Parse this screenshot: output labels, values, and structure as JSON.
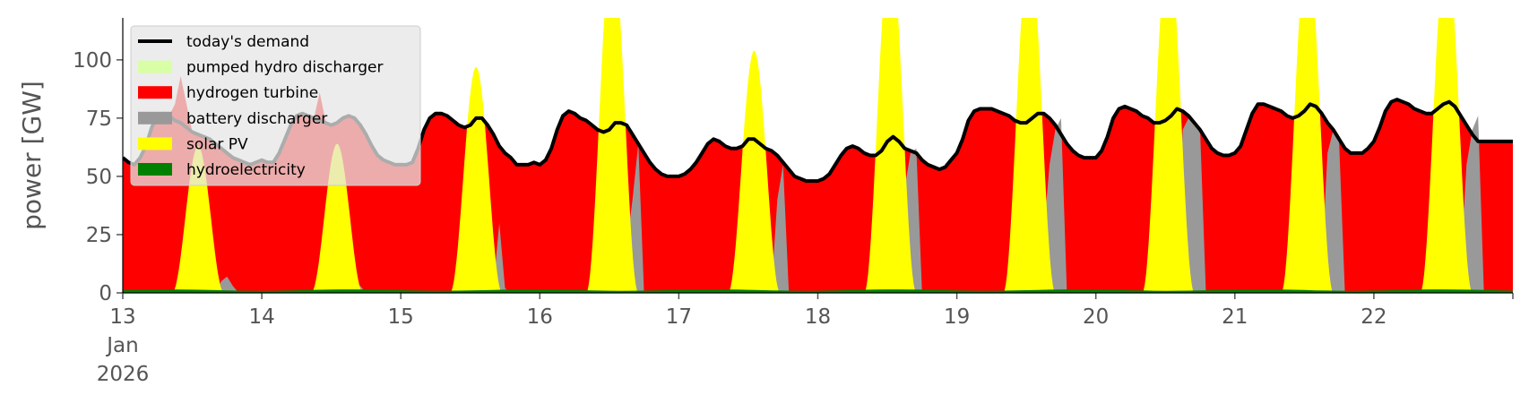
{
  "chart_data": {
    "type": "area",
    "title": "",
    "xlabel": "",
    "ylabel": "power [GW]",
    "xlim": [
      0,
      240
    ],
    "ylim": [
      0,
      118
    ],
    "yticks": [
      0,
      25,
      50,
      75,
      100
    ],
    "ytick_labels": [
      "0",
      "25",
      "50",
      "75",
      "100"
    ],
    "xticks": [
      0,
      24,
      48,
      72,
      96,
      120,
      144,
      168,
      192,
      216,
      240
    ],
    "xtick_labels": [
      "13",
      "14",
      "15",
      "16",
      "17",
      "18",
      "19",
      "20",
      "21",
      "22",
      ""
    ],
    "xtick_sublabels": [
      "Jan",
      "2026"
    ],
    "grid": false,
    "legend_position": "top-left",
    "colors": {
      "demand": "#000000",
      "pumped_hydro": "#d9ffa6",
      "hydrogen": "#ff0000",
      "battery": "#999999",
      "solar": "#ffff00",
      "hydro": "#008000"
    },
    "days": [
      {
        "day": "13",
        "demand": [
          58,
          56,
          55,
          58,
          63,
          71,
          76,
          77,
          76,
          74,
          73,
          71,
          69,
          68,
          67,
          66,
          64,
          62,
          60,
          58,
          57,
          56,
          55,
          56
        ],
        "battery": [
          0,
          0,
          0,
          0,
          0,
          0,
          0,
          0,
          0,
          0,
          0,
          0,
          0,
          0,
          0,
          0,
          0,
          5,
          7,
          3,
          0,
          0,
          0,
          0
        ],
        "hydrogen_end": 0
      },
      {
        "day": "14",
        "demand": [
          57,
          56,
          56,
          60,
          66,
          72,
          76,
          77,
          76,
          75,
          74,
          73,
          72,
          73,
          75,
          76,
          75,
          72,
          68,
          63,
          59,
          57,
          56,
          55
        ],
        "battery": [
          0,
          0,
          0,
          0,
          0,
          0,
          0,
          0,
          0,
          0,
          0,
          0,
          0,
          0,
          0,
          5,
          5,
          3,
          0,
          0,
          0,
          0,
          0,
          0
        ],
        "hydrogen_end": 0
      },
      {
        "day": "15",
        "demand": [
          55,
          55,
          56,
          62,
          70,
          75,
          77,
          77,
          76,
          74,
          72,
          71,
          72,
          75,
          75,
          72,
          68,
          63,
          60,
          58,
          55,
          55,
          55,
          56
        ],
        "battery": [
          0,
          0,
          0,
          0,
          0,
          0,
          0,
          0,
          0,
          0,
          0,
          0,
          0,
          6,
          5,
          4,
          3,
          30,
          2,
          0,
          0,
          0,
          0,
          0
        ],
        "hydrogen_end": 0
      },
      {
        "day": "16",
        "demand": [
          55,
          57,
          62,
          70,
          76,
          78,
          77,
          75,
          74,
          72,
          70,
          69,
          70,
          73,
          73,
          72,
          68,
          64,
          60,
          56,
          53,
          51,
          50,
          50
        ],
        "battery": [
          0,
          0,
          0,
          0,
          0,
          0,
          0,
          0,
          0,
          0,
          0,
          0,
          0,
          5,
          2,
          20,
          40,
          64,
          0,
          0,
          0,
          0,
          0,
          0
        ],
        "hydrogen_end": 0
      },
      {
        "day": "17",
        "demand": [
          50,
          51,
          53,
          56,
          60,
          64,
          66,
          65,
          63,
          62,
          62,
          63,
          66,
          66,
          64,
          62,
          61,
          59,
          56,
          53,
          50,
          49,
          48,
          48
        ],
        "battery": [
          0,
          0,
          0,
          0,
          0,
          0,
          0,
          0,
          0,
          0,
          0,
          0,
          0,
          0,
          0,
          0,
          2,
          40,
          55,
          0,
          0,
          0,
          0,
          0
        ],
        "hydrogen_end": 0
      },
      {
        "day": "18",
        "demand": [
          48,
          49,
          51,
          55,
          59,
          62,
          63,
          62,
          60,
          59,
          59,
          61,
          65,
          67,
          65,
          62,
          61,
          60,
          57,
          55,
          54,
          53,
          54,
          57
        ],
        "battery": [
          0,
          0,
          0,
          0,
          0,
          0,
          0,
          0,
          0,
          0,
          0,
          0,
          0,
          0,
          20,
          45,
          60,
          62,
          0,
          0,
          0,
          0,
          0,
          0
        ],
        "hydrogen_end": 0
      },
      {
        "day": "19",
        "demand": [
          60,
          66,
          74,
          78,
          79,
          79,
          79,
          78,
          77,
          76,
          74,
          73,
          73,
          75,
          77,
          77,
          75,
          72,
          68,
          64,
          61,
          59,
          58,
          58
        ],
        "battery": [
          0,
          0,
          0,
          0,
          0,
          0,
          0,
          0,
          0,
          0,
          0,
          0,
          0,
          5,
          8,
          25,
          55,
          70,
          75,
          0,
          0,
          0,
          0,
          0
        ],
        "hydrogen_end": 0
      },
      {
        "day": "20",
        "demand": [
          58,
          61,
          67,
          75,
          79,
          80,
          79,
          78,
          76,
          75,
          73,
          73,
          74,
          76,
          79,
          78,
          76,
          73,
          70,
          66,
          62,
          60,
          59,
          59
        ],
        "battery": [
          0,
          0,
          0,
          0,
          0,
          0,
          0,
          0,
          0,
          0,
          0,
          0,
          0,
          0,
          10,
          70,
          75,
          74,
          70,
          0,
          0,
          0,
          0,
          0
        ],
        "hydrogen_end": 0
      },
      {
        "day": "21",
        "demand": [
          60,
          63,
          70,
          77,
          81,
          81,
          80,
          79,
          78,
          76,
          75,
          76,
          78,
          81,
          80,
          77,
          73,
          70,
          66,
          62,
          60,
          60,
          60,
          62
        ],
        "battery": [
          0,
          0,
          0,
          0,
          0,
          0,
          0,
          0,
          0,
          0,
          0,
          0,
          0,
          0,
          12,
          12,
          60,
          70,
          65,
          0,
          0,
          0,
          0,
          0
        ],
        "hydrogen_end": 0
      },
      {
        "day": "22",
        "demand": [
          65,
          71,
          78,
          82,
          83,
          82,
          81,
          79,
          78,
          77,
          77,
          79,
          81,
          82,
          80,
          76,
          72,
          68,
          65
        ],
        "battery": [
          0,
          0,
          0,
          0,
          0,
          0,
          0,
          0,
          0,
          0,
          0,
          0,
          0,
          0,
          0,
          12,
          55,
          70,
          76
        ],
        "hydrogen_end": 0
      }
    ],
    "solar_peaks": [
      {
        "hour": 13,
        "peak": 63
      },
      {
        "hour": 37,
        "peak": 64
      },
      {
        "hour": 61,
        "peak": 97
      },
      {
        "hour": 84.5,
        "peak": 150
      },
      {
        "hour": 109,
        "peak": 104
      },
      {
        "hour": 132.5,
        "peak": 150
      },
      {
        "hour": 156.5,
        "peak": 150
      },
      {
        "hour": 180.5,
        "peak": 150
      },
      {
        "hour": 204.5,
        "peak": 150
      },
      {
        "hour": 228.5,
        "peak": 150
      }
    ],
    "hydrogen_spikes": [
      {
        "hour": 10,
        "peak": 93
      },
      {
        "hour": 34,
        "peak": 86
      }
    ],
    "series": [
      {
        "name": "today's demand"
      },
      {
        "name": "pumped hydro discharger"
      },
      {
        "name": "hydrogen turbine"
      },
      {
        "name": "battery discharger"
      },
      {
        "name": "solar PV"
      },
      {
        "name": "hydroelectricity"
      }
    ]
  }
}
